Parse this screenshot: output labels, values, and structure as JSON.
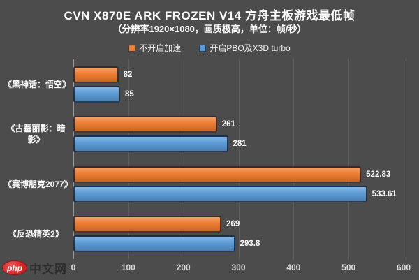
{
  "title": "CVN X870E ARK FROZEN V14 方舟主板游戏最低帧",
  "subtitle": "（分辨率1920×1080，画质极高，单位：帧/秒）",
  "legend": [
    {
      "label": "不开启加速",
      "color": "#ED7D31"
    },
    {
      "label": "开启PBO及X3D turbo",
      "color": "#5B9BD5"
    }
  ],
  "watermark": {
    "logo_text": "php",
    "site_text": "中文网"
  },
  "chart_data": {
    "type": "bar",
    "orientation": "horizontal",
    "title": "CVN X870E ARK FROZEN V14 方舟主板游戏最低帧",
    "subtitle": "（分辨率1920×1080，画质极高，单位：帧/秒）",
    "categories": [
      "《黑神话：悟空》",
      "《古墓丽影：暗影》",
      "《赛博朋克2077》",
      "《反恐精英2》"
    ],
    "series": [
      {
        "name": "不开启加速",
        "color": "#ED7D31",
        "values": [
          82,
          261,
          522.83,
          269
        ]
      },
      {
        "name": "开启PBO及X3D turbo",
        "color": "#5B9BD5",
        "values": [
          85,
          281,
          533.61,
          293.8
        ]
      }
    ],
    "xlim": [
      0,
      600
    ],
    "xticks": [
      0,
      100,
      200,
      300,
      400,
      500,
      600
    ],
    "grid": true,
    "legend_position": "top",
    "unit": "帧/秒"
  }
}
